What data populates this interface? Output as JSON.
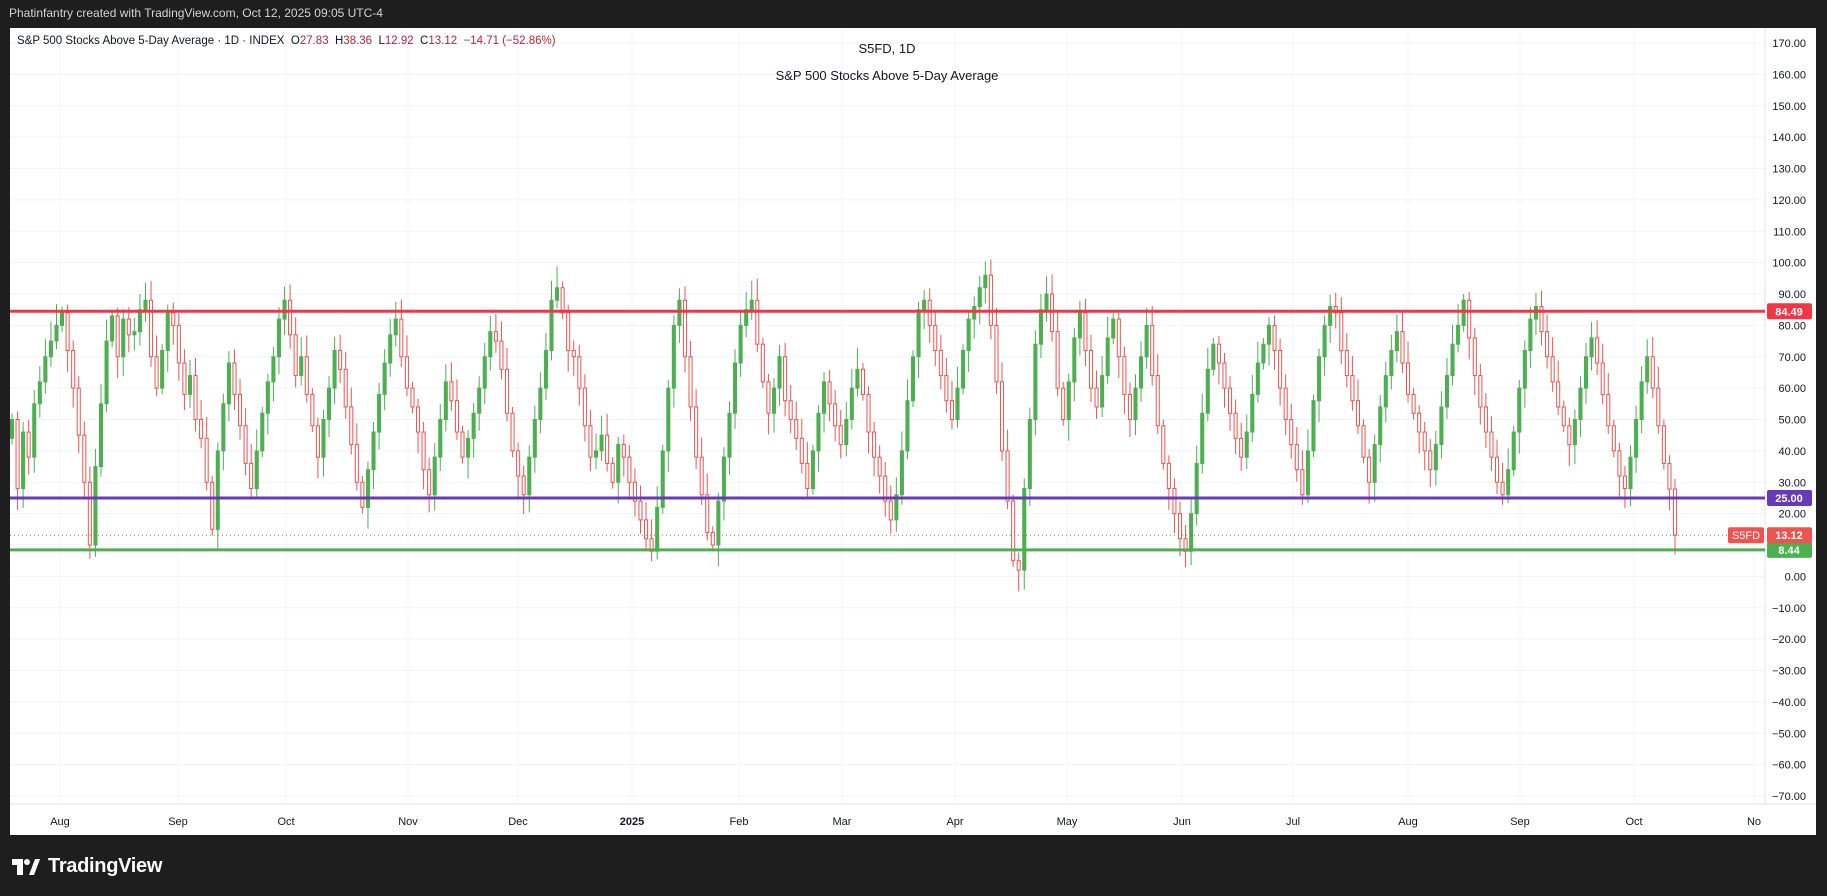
{
  "attribution": "Phatinfantry created with TradingView.com, Oct 12, 2025 09:05 UTC-4",
  "legend": {
    "name": "S&P 500 Stocks Above 5-Day Average",
    "interval": "1D",
    "source": "INDEX",
    "open": "27.83",
    "high": "38.36",
    "low": "12.92",
    "close": "13.12",
    "change": "−14.71 (−52.86%)"
  },
  "footer": {
    "brand": "TradingView"
  },
  "colors": {
    "up": "#4caf50",
    "down": "#ef5350",
    "resistance": "#f23645",
    "midline": "#673ab7",
    "support": "#4caf50",
    "grid": "#f0f3fa",
    "axis_text": "#131722"
  },
  "chart_data": {
    "type": "candlestick",
    "title": "S5FD, 1D",
    "subtitle": "S&P 500 Stocks Above 5-Day Average",
    "symbol": "S5FD",
    "last_value": 13.12,
    "y_axis": {
      "min": -70,
      "max": 170,
      "ticks": [
        "170.00",
        "160.00",
        "150.00",
        "140.00",
        "130.00",
        "120.00",
        "110.00",
        "100.00",
        "90.00",
        "80.00",
        "70.00",
        "60.00",
        "50.00",
        "40.00",
        "30.00",
        "20.00",
        "10.00",
        "0.00",
        "−10.00",
        "−20.00",
        "−30.00",
        "−40.00",
        "−50.00",
        "−60.00",
        "−70.00"
      ]
    },
    "x_axis": {
      "labels": [
        "Aug",
        "Sep",
        "Oct",
        "Nov",
        "Dec",
        "2025",
        "Feb",
        "Mar",
        "Apr",
        "May",
        "Jun",
        "Jul",
        "Aug",
        "Sep",
        "Oct",
        "No"
      ]
    },
    "horizontal_lines": [
      {
        "label": "84.49",
        "value": 84.49,
        "color": "#f23645"
      },
      {
        "label": "25.00",
        "value": 25.0,
        "color": "#673ab7"
      },
      {
        "label": "8.44",
        "value": 8.44,
        "color": "#4caf50"
      }
    ],
    "ohlc_closes": [
      50,
      28,
      46,
      38,
      55,
      62,
      70,
      75,
      80,
      84,
      72,
      60,
      45,
      30,
      10,
      35,
      55,
      75,
      83,
      70,
      82,
      77,
      78,
      85,
      88,
      70,
      60,
      72,
      84,
      80,
      68,
      58,
      64,
      50,
      44,
      30,
      15,
      40,
      55,
      68,
      58,
      48,
      36,
      28,
      40,
      52,
      62,
      70,
      82,
      88,
      77,
      64,
      70,
      58,
      48,
      38,
      50,
      60,
      72,
      66,
      54,
      42,
      30,
      22,
      34,
      46,
      58,
      68,
      77,
      82,
      70,
      60,
      54,
      46,
      34,
      26,
      38,
      50,
      62,
      56,
      46,
      38,
      44,
      52,
      60,
      70,
      78,
      75,
      66,
      52,
      40,
      32,
      26,
      38,
      50,
      60,
      72,
      88,
      92,
      84,
      72,
      70,
      60,
      48,
      38,
      40,
      45,
      36,
      30,
      42,
      38,
      30,
      24,
      18,
      12,
      8,
      22,
      40,
      60,
      80,
      88,
      70,
      54,
      38,
      26,
      14,
      10,
      24,
      38,
      52,
      68,
      80,
      85,
      88,
      74,
      62,
      52,
      60,
      70,
      56,
      50,
      44,
      36,
      28,
      40,
      52,
      62,
      55,
      48,
      42,
      50,
      60,
      66,
      58,
      46,
      38,
      32,
      24,
      18,
      26,
      40,
      56,
      70,
      85,
      88,
      80,
      72,
      64,
      56,
      50,
      60,
      72,
      82,
      86,
      92,
      96,
      80,
      62,
      40,
      24,
      5,
      2,
      28,
      50,
      74,
      85,
      90,
      78,
      60,
      50,
      62,
      76,
      84,
      72,
      60,
      54,
      64,
      76,
      82,
      70,
      58,
      50,
      60,
      70,
      80,
      64,
      48,
      36,
      28,
      20,
      12,
      8,
      20,
      36,
      52,
      66,
      74,
      68,
      60,
      52,
      44,
      38,
      46,
      58,
      68,
      74,
      80,
      72,
      60,
      50,
      42,
      34,
      26,
      40,
      56,
      70,
      80,
      86,
      84,
      72,
      64,
      56,
      48,
      38,
      30,
      42,
      54,
      64,
      72,
      78,
      68,
      58,
      52,
      46,
      40,
      34,
      42,
      54,
      64,
      74,
      80,
      88,
      76,
      64,
      54,
      46,
      38,
      30,
      26,
      34,
      46,
      60,
      72,
      82,
      86,
      78,
      70,
      62,
      54,
      48,
      42,
      50,
      60,
      70,
      76,
      68,
      58,
      48,
      40,
      32,
      28,
      38,
      50,
      62,
      70,
      60,
      48,
      36,
      27.83,
      13.12
    ]
  }
}
